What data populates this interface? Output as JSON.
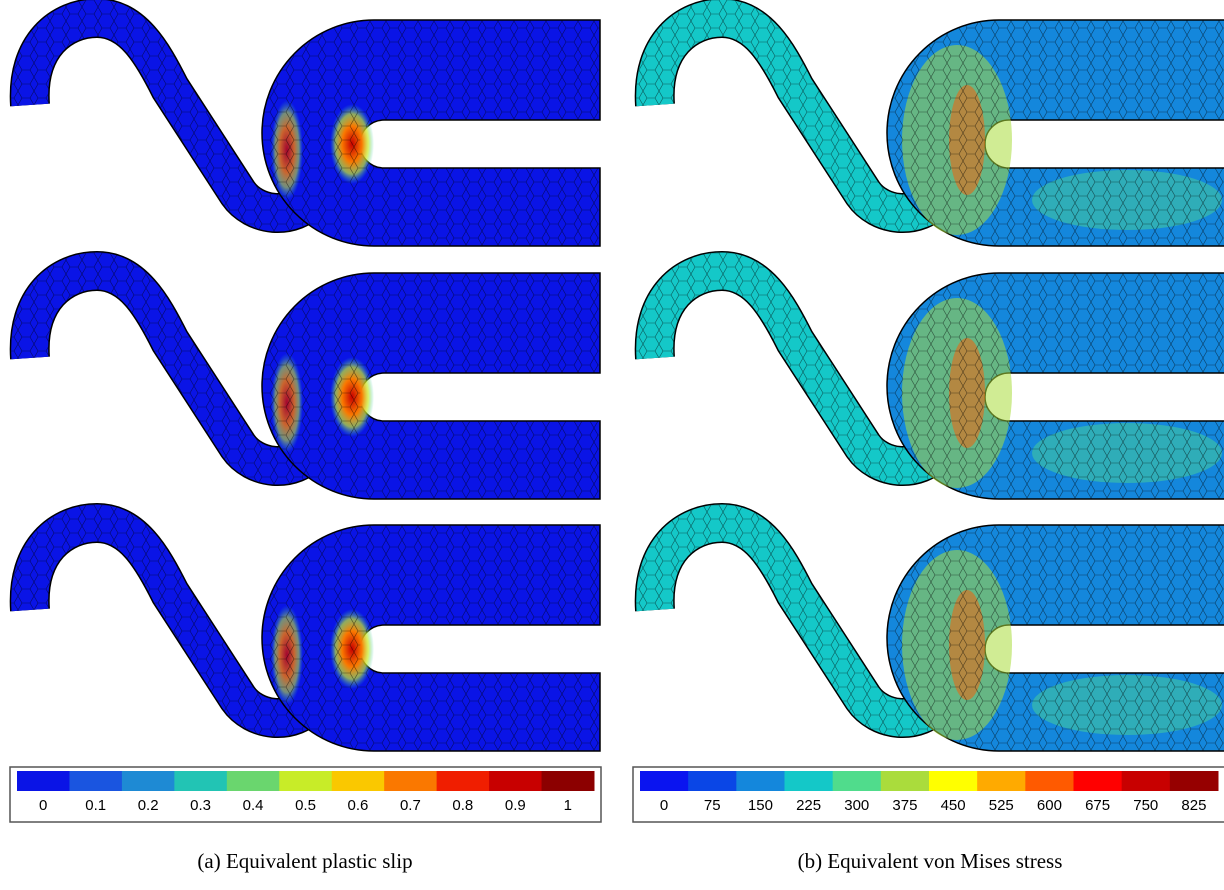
{
  "panels": [
    {
      "caption": "(a) Equivalent plastic slip",
      "colorbar": {
        "ticks": [
          0,
          0.1,
          0.2,
          0.3,
          0.4,
          0.5,
          0.6,
          0.7,
          0.8,
          0.9,
          1
        ],
        "colors": [
          "#0a14e6",
          "#1a55e0",
          "#1e8ad4",
          "#22c4b4",
          "#6ad66e",
          "#c8ec28",
          "#fac800",
          "#fa7800",
          "#f01e00",
          "#c80000",
          "#8c0000"
        ]
      }
    },
    {
      "caption": "(b) Equivalent von Mises stress",
      "colorbar": {
        "ticks": [
          0,
          75,
          150,
          225,
          300,
          375,
          450,
          525,
          600,
          675,
          750,
          825
        ],
        "colors": [
          "#0a14f0",
          "#0a46e6",
          "#1487dc",
          "#14c8c8",
          "#50dc8c",
          "#aadc3c",
          "#ffff00",
          "#ffaa00",
          "#ff5a00",
          "#ff0000",
          "#c80000",
          "#960000"
        ]
      }
    }
  ]
}
